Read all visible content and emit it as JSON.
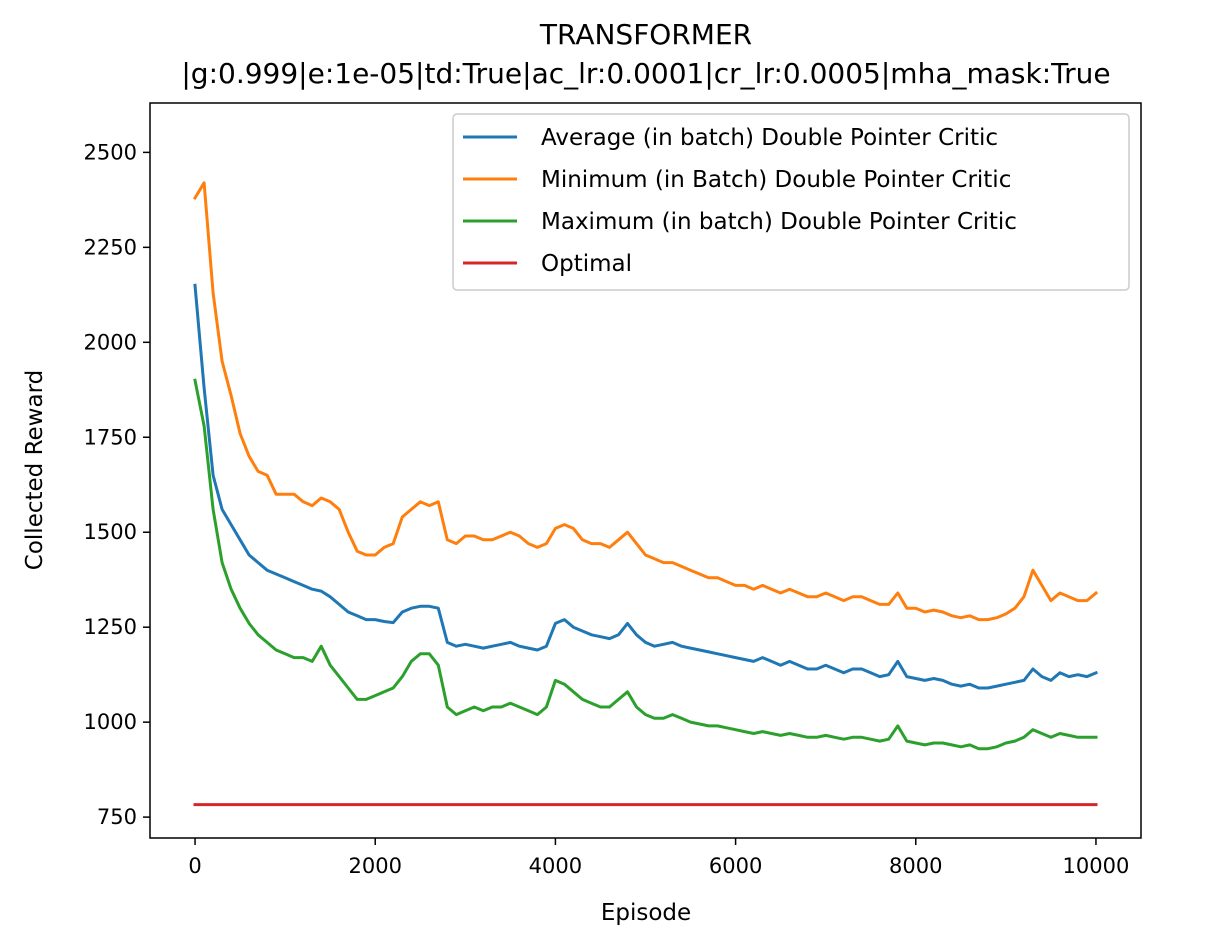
{
  "chart_data": {
    "type": "line",
    "title": "TRANSFORMER",
    "subtitle": "|g:0.999|e:1e-05|td:True|ac_lr:0.0001|cr_lr:0.0005|mha_mask:True",
    "xlabel": "Episode",
    "ylabel": "Collected Reward",
    "xlim": [
      -500,
      10500
    ],
    "ylim": [
      695,
      2630
    ],
    "xticks": [
      0,
      2000,
      4000,
      6000,
      8000,
      10000
    ],
    "yticks": [
      750,
      1000,
      1250,
      1500,
      1750,
      2000,
      2250,
      2500
    ],
    "grid": false,
    "legend_position": "top-right",
    "x": [
      0,
      100,
      200,
      300,
      400,
      500,
      600,
      700,
      800,
      900,
      1000,
      1100,
      1200,
      1300,
      1400,
      1500,
      1600,
      1700,
      1800,
      1900,
      2000,
      2100,
      2200,
      2300,
      2400,
      2500,
      2600,
      2700,
      2800,
      2900,
      3000,
      3100,
      3200,
      3300,
      3400,
      3500,
      3600,
      3700,
      3800,
      3900,
      4000,
      4100,
      4200,
      4300,
      4400,
      4500,
      4600,
      4700,
      4800,
      4900,
      5000,
      5100,
      5200,
      5300,
      5400,
      5500,
      5600,
      5700,
      5800,
      5900,
      6000,
      6100,
      6200,
      6300,
      6400,
      6500,
      6600,
      6700,
      6800,
      6900,
      7000,
      7100,
      7200,
      7300,
      7400,
      7500,
      7600,
      7700,
      7800,
      7900,
      8000,
      8100,
      8200,
      8300,
      8400,
      8500,
      8600,
      8700,
      8800,
      8900,
      9000,
      9100,
      9200,
      9300,
      9400,
      9500,
      9600,
      9700,
      9800,
      9900,
      10000
    ],
    "series": [
      {
        "name": "Average (in batch) Double Pointer Critic",
        "color": "#1f77b4",
        "values": [
          2150,
          1880,
          1650,
          1560,
          1520,
          1480,
          1440,
          1420,
          1400,
          1390,
          1380,
          1370,
          1360,
          1350,
          1345,
          1330,
          1310,
          1290,
          1280,
          1270,
          1270,
          1265,
          1262,
          1290,
          1300,
          1305,
          1305,
          1300,
          1210,
          1200,
          1205,
          1200,
          1195,
          1200,
          1205,
          1210,
          1200,
          1195,
          1190,
          1200,
          1260,
          1270,
          1250,
          1240,
          1230,
          1225,
          1220,
          1230,
          1260,
          1230,
          1210,
          1200,
          1205,
          1210,
          1200,
          1195,
          1190,
          1185,
          1180,
          1175,
          1170,
          1165,
          1160,
          1170,
          1160,
          1150,
          1160,
          1150,
          1140,
          1140,
          1150,
          1140,
          1130,
          1140,
          1140,
          1130,
          1120,
          1125,
          1160,
          1120,
          1115,
          1110,
          1115,
          1110,
          1100,
          1095,
          1100,
          1090,
          1090,
          1095,
          1100,
          1105,
          1110,
          1140,
          1120,
          1110,
          1130,
          1120,
          1125,
          1120,
          1130
        ]
      },
      {
        "name": "Minimum (in Batch) Double Pointer Critic",
        "color": "#ff7f0e",
        "values": [
          2380,
          2420,
          2130,
          1950,
          1860,
          1760,
          1700,
          1660,
          1650,
          1600,
          1600,
          1600,
          1580,
          1570,
          1590,
          1580,
          1560,
          1500,
          1450,
          1440,
          1440,
          1460,
          1470,
          1540,
          1560,
          1580,
          1570,
          1580,
          1480,
          1470,
          1490,
          1490,
          1480,
          1480,
          1490,
          1500,
          1490,
          1470,
          1460,
          1470,
          1510,
          1520,
          1510,
          1480,
          1470,
          1470,
          1460,
          1480,
          1500,
          1470,
          1440,
          1430,
          1420,
          1420,
          1410,
          1400,
          1390,
          1380,
          1380,
          1370,
          1360,
          1360,
          1350,
          1360,
          1350,
          1340,
          1350,
          1340,
          1330,
          1330,
          1340,
          1330,
          1320,
          1330,
          1330,
          1320,
          1310,
          1310,
          1340,
          1300,
          1300,
          1290,
          1295,
          1290,
          1280,
          1275,
          1280,
          1270,
          1270,
          1275,
          1285,
          1300,
          1330,
          1400,
          1360,
          1320,
          1340,
          1330,
          1320,
          1320,
          1340
        ]
      },
      {
        "name": "Maximum (in batch) Double Pointer Critic",
        "color": "#2ca02c",
        "values": [
          1900,
          1780,
          1560,
          1420,
          1350,
          1300,
          1260,
          1230,
          1210,
          1190,
          1180,
          1170,
          1170,
          1160,
          1200,
          1150,
          1120,
          1090,
          1060,
          1060,
          1070,
          1080,
          1090,
          1120,
          1160,
          1180,
          1180,
          1150,
          1040,
          1020,
          1030,
          1040,
          1030,
          1040,
          1040,
          1050,
          1040,
          1030,
          1020,
          1040,
          1110,
          1100,
          1080,
          1060,
          1050,
          1040,
          1040,
          1060,
          1080,
          1040,
          1020,
          1010,
          1010,
          1020,
          1010,
          1000,
          995,
          990,
          990,
          985,
          980,
          975,
          970,
          975,
          970,
          965,
          970,
          965,
          960,
          960,
          965,
          960,
          955,
          960,
          960,
          955,
          950,
          955,
          990,
          950,
          945,
          940,
          945,
          945,
          940,
          935,
          940,
          930,
          930,
          935,
          945,
          950,
          960,
          980,
          970,
          960,
          970,
          965,
          960,
          960,
          960
        ]
      },
      {
        "name": "Optimal",
        "color": "#d62728",
        "values": [
          783,
          783,
          783,
          783,
          783,
          783,
          783,
          783,
          783,
          783,
          783,
          783,
          783,
          783,
          783,
          783,
          783,
          783,
          783,
          783,
          783,
          783,
          783,
          783,
          783,
          783,
          783,
          783,
          783,
          783,
          783,
          783,
          783,
          783,
          783,
          783,
          783,
          783,
          783,
          783,
          783,
          783,
          783,
          783,
          783,
          783,
          783,
          783,
          783,
          783,
          783,
          783,
          783,
          783,
          783,
          783,
          783,
          783,
          783,
          783,
          783,
          783,
          783,
          783,
          783,
          783,
          783,
          783,
          783,
          783,
          783,
          783,
          783,
          783,
          783,
          783,
          783,
          783,
          783,
          783,
          783,
          783,
          783,
          783,
          783,
          783,
          783,
          783,
          783,
          783,
          783,
          783,
          783,
          783,
          783,
          783,
          783,
          783,
          783,
          783,
          783
        ]
      }
    ]
  }
}
